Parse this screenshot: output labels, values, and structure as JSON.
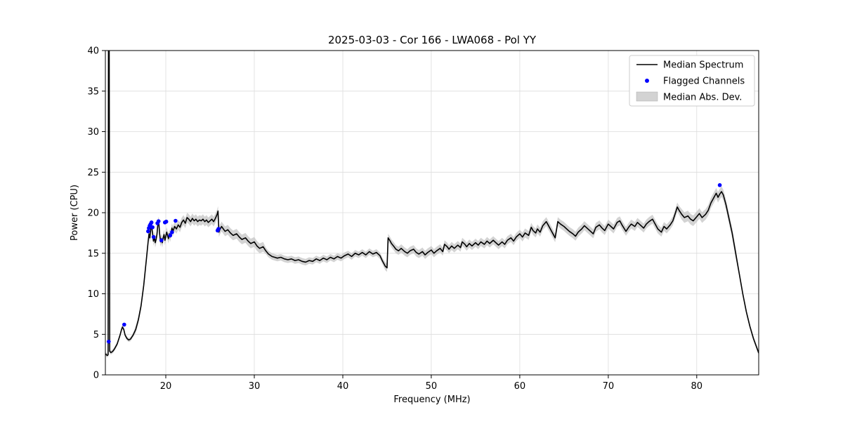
{
  "colors": {
    "line": "#000000",
    "flagged": "#0000ff",
    "band": "#c4c4c4",
    "band_opacity": 0.75,
    "grid": "#dcdcdc",
    "frame": "#000000",
    "legend_border": "#cccccc"
  },
  "chart_data": {
    "type": "line",
    "title": "2025-03-03 - Cor 166 - LWA068 - Pol YY",
    "xlabel": "Frequency (MHz)",
    "ylabel": "Power (CPU)",
    "xlim": [
      13.17,
      87.0
    ],
    "ylim": [
      0,
      40
    ],
    "xticks": [
      20,
      30,
      40,
      50,
      60,
      70,
      80
    ],
    "yticks": [
      0,
      5,
      10,
      15,
      20,
      25,
      30,
      35,
      40
    ],
    "grid": true,
    "legend_position": "upper right",
    "series": [
      {
        "name": "Median Spectrum",
        "type": "line",
        "points": [
          [
            13.2,
            2.6
          ],
          [
            13.3,
            2.45
          ],
          [
            13.42,
            2.4
          ],
          [
            13.48,
            2.5
          ],
          [
            13.52,
            41
          ],
          [
            13.6,
            41
          ],
          [
            13.66,
            2.9
          ],
          [
            13.8,
            2.75
          ],
          [
            14.0,
            2.9
          ],
          [
            14.2,
            3.2
          ],
          [
            14.5,
            3.8
          ],
          [
            14.8,
            4.8
          ],
          [
            15.0,
            5.6
          ],
          [
            15.1,
            5.9
          ],
          [
            15.25,
            5.6
          ],
          [
            15.4,
            4.9
          ],
          [
            15.6,
            4.5
          ],
          [
            15.8,
            4.3
          ],
          [
            16.0,
            4.4
          ],
          [
            16.3,
            4.9
          ],
          [
            16.6,
            5.6
          ],
          [
            16.9,
            6.8
          ],
          [
            17.2,
            8.5
          ],
          [
            17.5,
            11.0
          ],
          [
            17.8,
            14.2
          ],
          [
            18.0,
            16.4
          ],
          [
            18.1,
            17.4
          ],
          [
            18.2,
            16.9
          ],
          [
            18.3,
            18.0
          ],
          [
            18.4,
            18.3
          ],
          [
            18.5,
            17.5
          ],
          [
            18.6,
            16.5
          ],
          [
            18.7,
            17.1
          ],
          [
            18.8,
            16.3
          ],
          [
            18.9,
            16.7
          ],
          [
            19.0,
            17.3
          ],
          [
            19.1,
            18.6
          ],
          [
            19.2,
            18.9
          ],
          [
            19.3,
            17.4
          ],
          [
            19.4,
            16.4
          ],
          [
            19.5,
            16.8
          ],
          [
            19.6,
            16.3
          ],
          [
            19.7,
            16.9
          ],
          [
            19.8,
            17.3
          ],
          [
            19.9,
            16.6
          ],
          [
            20.0,
            17.1
          ],
          [
            20.1,
            17.6
          ],
          [
            20.2,
            17.2
          ],
          [
            20.3,
            16.8
          ],
          [
            20.4,
            17.4
          ],
          [
            20.5,
            17.0
          ],
          [
            20.6,
            17.6
          ],
          [
            20.7,
            18.1
          ],
          [
            20.8,
            17.7
          ],
          [
            21.0,
            18.3
          ],
          [
            21.2,
            18.0
          ],
          [
            21.4,
            18.5
          ],
          [
            21.6,
            18.2
          ],
          [
            21.8,
            18.8
          ],
          [
            22.0,
            19.1
          ],
          [
            22.2,
            18.7
          ],
          [
            22.4,
            19.4
          ],
          [
            22.6,
            19.2
          ],
          [
            22.8,
            18.9
          ],
          [
            23.0,
            19.3
          ],
          [
            23.2,
            19.0
          ],
          [
            23.4,
            19.2
          ],
          [
            23.6,
            18.9
          ],
          [
            23.8,
            19.1
          ],
          [
            24.0,
            19.0
          ],
          [
            24.2,
            19.2
          ],
          [
            24.4,
            18.9
          ],
          [
            24.6,
            19.1
          ],
          [
            24.8,
            18.8
          ],
          [
            25.0,
            19.0
          ],
          [
            25.2,
            19.2
          ],
          [
            25.4,
            18.9
          ],
          [
            25.6,
            19.3
          ],
          [
            25.8,
            19.8
          ],
          [
            25.9,
            20.2
          ],
          [
            26.0,
            17.6
          ],
          [
            26.1,
            17.9
          ],
          [
            26.3,
            18.3
          ],
          [
            26.5,
            18.0
          ],
          [
            26.7,
            17.7
          ],
          [
            27.0,
            17.9
          ],
          [
            27.3,
            17.5
          ],
          [
            27.6,
            17.2
          ],
          [
            28.0,
            17.4
          ],
          [
            28.3,
            17.0
          ],
          [
            28.6,
            16.7
          ],
          [
            29.0,
            16.9
          ],
          [
            29.3,
            16.5
          ],
          [
            29.6,
            16.2
          ],
          [
            30.0,
            16.4
          ],
          [
            30.3,
            15.9
          ],
          [
            30.6,
            15.6
          ],
          [
            31.0,
            15.8
          ],
          [
            31.3,
            15.3
          ],
          [
            31.6,
            14.9
          ],
          [
            32.0,
            14.6
          ],
          [
            32.3,
            14.5
          ],
          [
            32.6,
            14.4
          ],
          [
            33.0,
            14.5
          ],
          [
            33.4,
            14.3
          ],
          [
            33.8,
            14.2
          ],
          [
            34.2,
            14.3
          ],
          [
            34.6,
            14.1
          ],
          [
            35.0,
            14.2
          ],
          [
            35.4,
            14.0
          ],
          [
            35.8,
            13.9
          ],
          [
            36.2,
            14.1
          ],
          [
            36.6,
            14.0
          ],
          [
            37.0,
            14.3
          ],
          [
            37.4,
            14.1
          ],
          [
            37.8,
            14.4
          ],
          [
            38.2,
            14.2
          ],
          [
            38.6,
            14.5
          ],
          [
            39.0,
            14.3
          ],
          [
            39.4,
            14.6
          ],
          [
            39.8,
            14.4
          ],
          [
            40.2,
            14.7
          ],
          [
            40.6,
            14.9
          ],
          [
            41.0,
            14.6
          ],
          [
            41.4,
            15.0
          ],
          [
            41.8,
            14.8
          ],
          [
            42.2,
            15.1
          ],
          [
            42.6,
            14.8
          ],
          [
            43.0,
            15.2
          ],
          [
            43.4,
            14.9
          ],
          [
            43.8,
            15.1
          ],
          [
            44.2,
            14.7
          ],
          [
            44.5,
            14.0
          ],
          [
            44.8,
            13.4
          ],
          [
            45.0,
            13.2
          ],
          [
            45.12,
            16.9
          ],
          [
            45.3,
            16.6
          ],
          [
            45.5,
            16.2
          ],
          [
            45.8,
            15.8
          ],
          [
            46.0,
            15.5
          ],
          [
            46.3,
            15.3
          ],
          [
            46.6,
            15.6
          ],
          [
            47.0,
            15.2
          ],
          [
            47.3,
            15.0
          ],
          [
            47.6,
            15.3
          ],
          [
            48.0,
            15.5
          ],
          [
            48.3,
            15.1
          ],
          [
            48.6,
            14.9
          ],
          [
            49.0,
            15.2
          ],
          [
            49.3,
            14.8
          ],
          [
            49.6,
            15.1
          ],
          [
            50.0,
            15.4
          ],
          [
            50.3,
            15.0
          ],
          [
            50.6,
            15.3
          ],
          [
            51.0,
            15.6
          ],
          [
            51.3,
            15.2
          ],
          [
            51.5,
            16.1
          ],
          [
            51.8,
            15.8
          ],
          [
            52.0,
            15.5
          ],
          [
            52.3,
            15.9
          ],
          [
            52.6,
            15.6
          ],
          [
            53.0,
            16.0
          ],
          [
            53.3,
            15.7
          ],
          [
            53.5,
            16.4
          ],
          [
            53.8,
            16.1
          ],
          [
            54.0,
            15.8
          ],
          [
            54.3,
            16.2
          ],
          [
            54.6,
            15.9
          ],
          [
            55.0,
            16.3
          ],
          [
            55.3,
            16.0
          ],
          [
            55.6,
            16.4
          ],
          [
            56.0,
            16.1
          ],
          [
            56.3,
            16.5
          ],
          [
            56.6,
            16.2
          ],
          [
            57.0,
            16.6
          ],
          [
            57.3,
            16.3
          ],
          [
            57.6,
            16.0
          ],
          [
            58.0,
            16.4
          ],
          [
            58.3,
            16.1
          ],
          [
            58.6,
            16.6
          ],
          [
            59.0,
            16.9
          ],
          [
            59.3,
            16.5
          ],
          [
            59.6,
            17.0
          ],
          [
            60.0,
            17.4
          ],
          [
            60.3,
            17.0
          ],
          [
            60.6,
            17.5
          ],
          [
            61.0,
            17.2
          ],
          [
            61.3,
            18.2
          ],
          [
            61.5,
            17.8
          ],
          [
            61.8,
            17.5
          ],
          [
            62.0,
            18.0
          ],
          [
            62.3,
            17.6
          ],
          [
            62.6,
            18.4
          ],
          [
            63.0,
            18.9
          ],
          [
            63.2,
            18.5
          ],
          [
            63.5,
            17.9
          ],
          [
            63.8,
            17.3
          ],
          [
            64.0,
            16.9
          ],
          [
            64.3,
            18.9
          ],
          [
            64.6,
            18.6
          ],
          [
            65.0,
            18.3
          ],
          [
            65.3,
            18.0
          ],
          [
            65.6,
            17.7
          ],
          [
            66.0,
            17.4
          ],
          [
            66.3,
            17.1
          ],
          [
            66.6,
            17.6
          ],
          [
            67.0,
            18.0
          ],
          [
            67.3,
            18.4
          ],
          [
            67.6,
            18.1
          ],
          [
            68.0,
            17.7
          ],
          [
            68.3,
            17.4
          ],
          [
            68.6,
            18.2
          ],
          [
            69.0,
            18.5
          ],
          [
            69.3,
            18.1
          ],
          [
            69.6,
            17.8
          ],
          [
            70.0,
            18.6
          ],
          [
            70.3,
            18.3
          ],
          [
            70.6,
            18.0
          ],
          [
            71.0,
            18.8
          ],
          [
            71.3,
            19.0
          ],
          [
            71.6,
            18.4
          ],
          [
            72.0,
            17.7
          ],
          [
            72.3,
            18.2
          ],
          [
            72.6,
            18.6
          ],
          [
            73.0,
            18.3
          ],
          [
            73.3,
            18.8
          ],
          [
            73.6,
            18.5
          ],
          [
            74.0,
            18.1
          ],
          [
            74.3,
            18.6
          ],
          [
            74.6,
            18.9
          ],
          [
            75.0,
            19.2
          ],
          [
            75.3,
            18.6
          ],
          [
            75.6,
            18.0
          ],
          [
            76.0,
            17.6
          ],
          [
            76.3,
            18.3
          ],
          [
            76.6,
            18.0
          ],
          [
            77.0,
            18.5
          ],
          [
            77.3,
            19.0
          ],
          [
            77.6,
            20.0
          ],
          [
            77.8,
            20.7
          ],
          [
            78.0,
            20.3
          ],
          [
            78.3,
            19.8
          ],
          [
            78.6,
            19.4
          ],
          [
            79.0,
            19.6
          ],
          [
            79.3,
            19.2
          ],
          [
            79.6,
            19.0
          ],
          [
            80.0,
            19.5
          ],
          [
            80.3,
            19.9
          ],
          [
            80.6,
            19.4
          ],
          [
            81.0,
            19.8
          ],
          [
            81.3,
            20.3
          ],
          [
            81.6,
            21.2
          ],
          [
            82.0,
            22.0
          ],
          [
            82.2,
            22.4
          ],
          [
            82.4,
            21.9
          ],
          [
            82.6,
            22.3
          ],
          [
            82.8,
            22.6
          ],
          [
            83.0,
            22.2
          ],
          [
            83.3,
            21.0
          ],
          [
            83.6,
            19.5
          ],
          [
            84.0,
            17.5
          ],
          [
            84.4,
            15.0
          ],
          [
            84.8,
            12.5
          ],
          [
            85.2,
            10.0
          ],
          [
            85.6,
            7.8
          ],
          [
            86.0,
            6.0
          ],
          [
            86.4,
            4.5
          ],
          [
            86.8,
            3.3
          ],
          [
            87.0,
            2.7
          ]
        ]
      },
      {
        "name": "Flagged Channels",
        "type": "scatter",
        "points": [
          [
            13.55,
            4.1
          ],
          [
            15.3,
            6.2
          ],
          [
            18.0,
            17.7
          ],
          [
            18.08,
            18.1
          ],
          [
            18.18,
            18.4
          ],
          [
            18.28,
            18.6
          ],
          [
            18.38,
            18.8
          ],
          [
            18.5,
            18.2
          ],
          [
            18.62,
            17.0
          ],
          [
            19.05,
            18.7
          ],
          [
            19.18,
            18.95
          ],
          [
            19.5,
            16.6
          ],
          [
            19.9,
            18.8
          ],
          [
            20.05,
            18.9
          ],
          [
            20.5,
            17.2
          ],
          [
            20.7,
            17.6
          ],
          [
            21.1,
            19.0
          ],
          [
            25.85,
            17.8
          ],
          [
            25.95,
            18.0
          ],
          [
            82.6,
            23.4
          ]
        ]
      },
      {
        "name": "Median Abs. Dev.",
        "type": "band",
        "halfwidth_ranges": [
          [
            13.17,
            16.5,
            0.25
          ],
          [
            16.5,
            18.0,
            0.45
          ],
          [
            18.0,
            31.0,
            0.6
          ],
          [
            31.0,
            44.5,
            0.4
          ],
          [
            44.5,
            60.0,
            0.5
          ],
          [
            60.0,
            78.0,
            0.55
          ],
          [
            78.0,
            84.5,
            0.65
          ],
          [
            84.5,
            87.0,
            0.3
          ]
        ]
      }
    ]
  }
}
